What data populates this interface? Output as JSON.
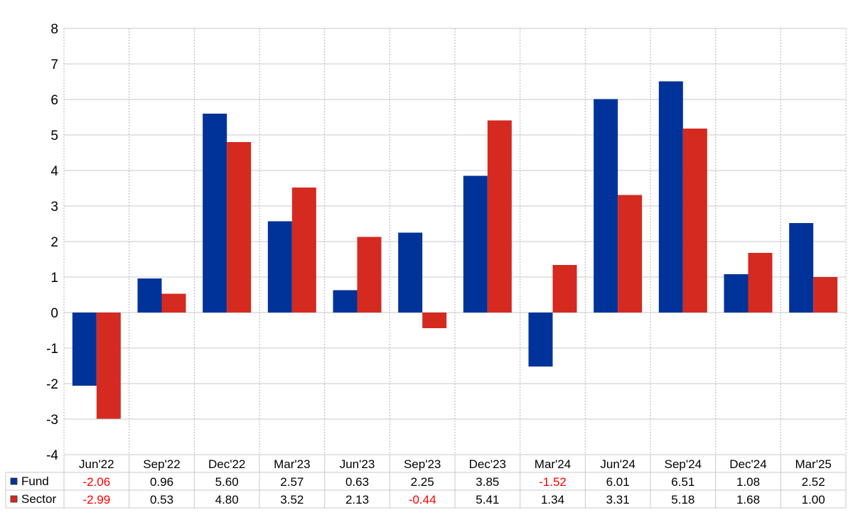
{
  "chart_data": {
    "type": "bar",
    "categories": [
      "Jun'22",
      "Sep'22",
      "Dec'22",
      "Mar'23",
      "Jun'23",
      "Sep'23",
      "Dec'23",
      "Mar'24",
      "Jun'24",
      "Sep'24",
      "Dec'24",
      "Mar'25"
    ],
    "series": [
      {
        "name": "Fund",
        "color": "#003399",
        "values": [
          -2.06,
          0.96,
          5.6,
          2.57,
          0.63,
          2.25,
          3.85,
          -1.52,
          6.01,
          6.51,
          1.08,
          2.52
        ]
      },
      {
        "name": "Sector",
        "color": "#d42a20",
        "values": [
          -2.99,
          0.53,
          4.8,
          3.52,
          2.13,
          -0.44,
          5.41,
          1.34,
          3.31,
          5.18,
          1.68,
          1.0
        ]
      }
    ],
    "value_labels": {
      "Fund": [
        "-2.06",
        "0.96",
        "5.60",
        "2.57",
        "0.63",
        "2.25",
        "3.85",
        "-1.52",
        "6.01",
        "6.51",
        "1.08",
        "2.52"
      ],
      "Sector": [
        "-2.99",
        "0.53",
        "4.80",
        "3.52",
        "2.13",
        "-0.44",
        "5.41",
        "1.34",
        "3.31",
        "5.18",
        "1.68",
        "1.00"
      ]
    },
    "ylim": [
      -4,
      8
    ],
    "yticks": [
      "-4",
      "-3",
      "-2",
      "-1",
      "0",
      "1",
      "2",
      "3",
      "4",
      "5",
      "6",
      "7",
      "8"
    ],
    "grid": true,
    "data_table": true,
    "negative_color": "#ff0000"
  }
}
